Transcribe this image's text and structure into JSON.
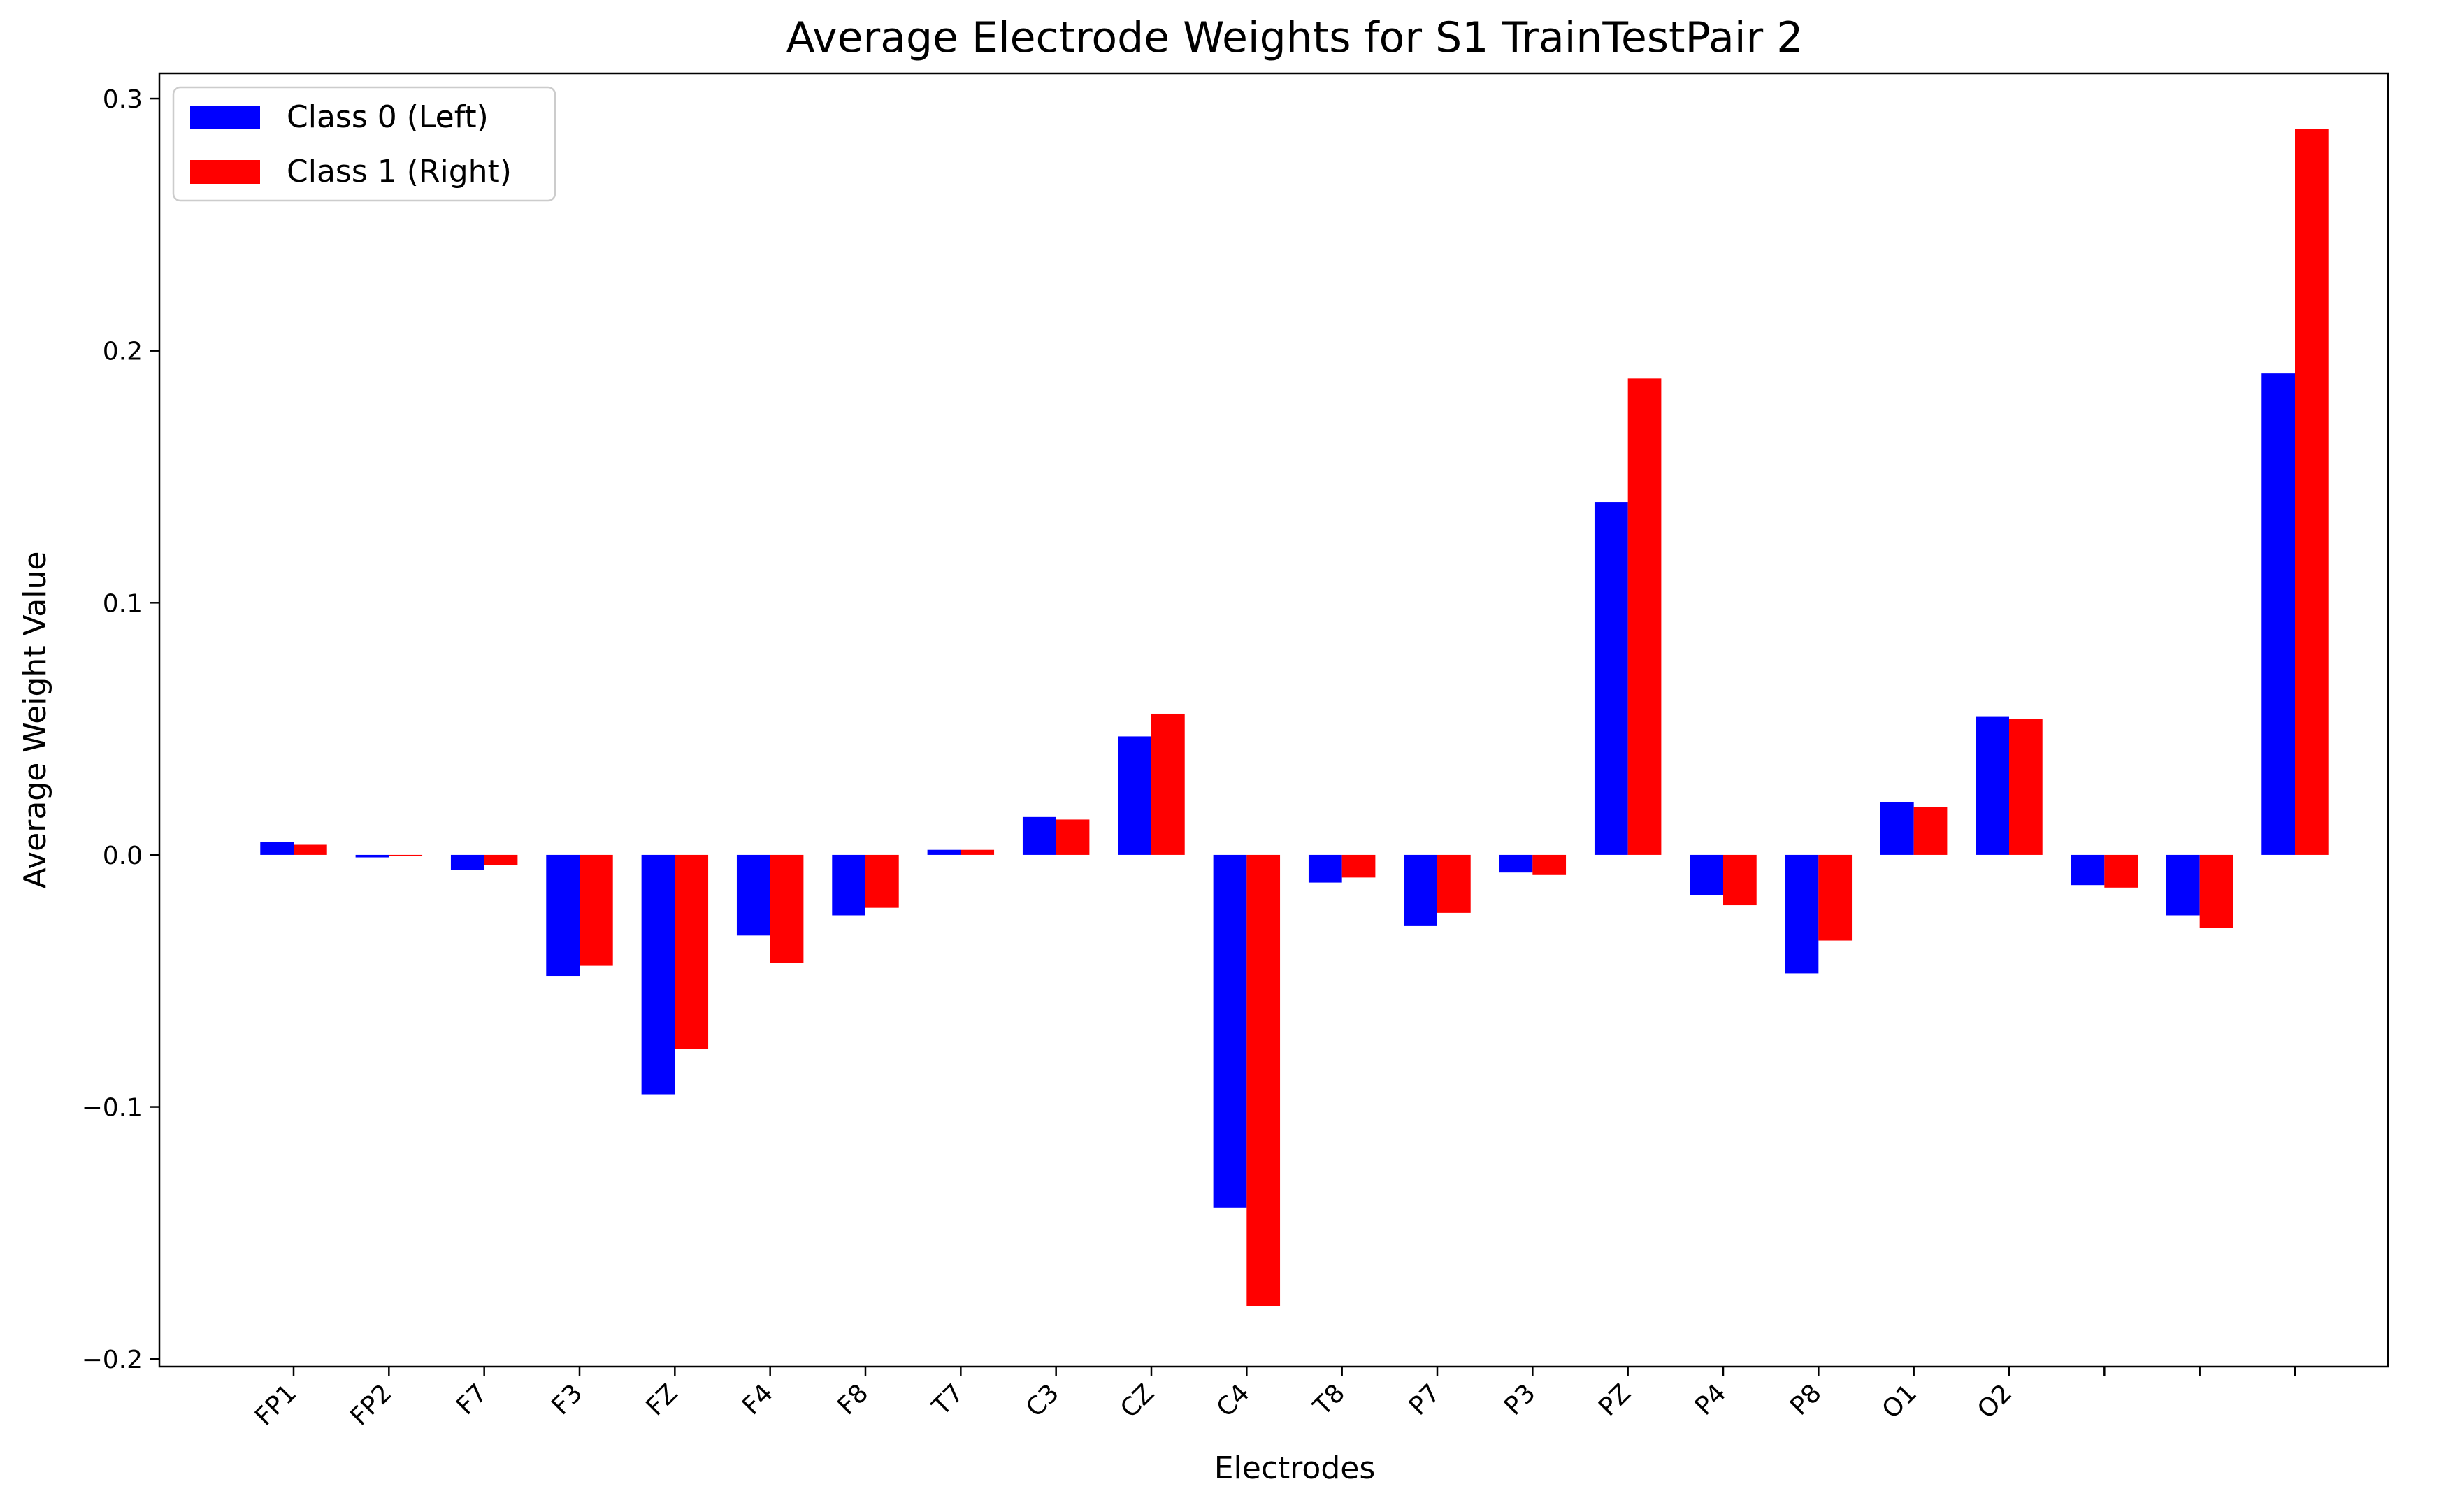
{
  "chart_data": {
    "type": "bar",
    "title": "Average Electrode Weights for S1 TrainTestPair 2",
    "xlabel": "Electrodes",
    "ylabel": "Average Weight Value",
    "ylim": [
      -0.203,
      0.31
    ],
    "yticks": [
      -0.2,
      -0.1,
      0.0,
      0.1,
      0.2,
      0.3
    ],
    "ytick_labels": [
      "−0.2",
      "−0.1",
      "0.0",
      "0.1",
      "0.2",
      "0.3"
    ],
    "categories": [
      "FP1",
      "FP2",
      "F7",
      "F3",
      "FZ",
      "F4",
      "F8",
      "T7",
      "C3",
      "CZ",
      "C4",
      "T8",
      "P7",
      "P3",
      "PZ",
      "P4",
      "P8",
      "O1",
      "O2",
      "",
      "",
      ""
    ],
    "series": [
      {
        "name": "Class 0 (Left)",
        "color": "#0000ff",
        "values": [
          0.005,
          -0.001,
          -0.006,
          -0.048,
          -0.095,
          -0.032,
          -0.024,
          0.002,
          0.015,
          0.047,
          -0.14,
          -0.011,
          -0.028,
          -0.007,
          0.14,
          -0.016,
          -0.047,
          0.021,
          0.055,
          -0.012,
          -0.024,
          0.191
        ]
      },
      {
        "name": "Class 1 (Right)",
        "color": "#ff0000",
        "values": [
          0.004,
          -0.0005,
          -0.004,
          -0.044,
          -0.077,
          -0.043,
          -0.021,
          0.002,
          0.014,
          0.056,
          -0.179,
          -0.009,
          -0.023,
          -0.008,
          0.189,
          -0.02,
          -0.034,
          0.019,
          0.054,
          -0.013,
          -0.029,
          0.288
        ]
      }
    ],
    "legend_position": "upper-left",
    "grid": false
  }
}
